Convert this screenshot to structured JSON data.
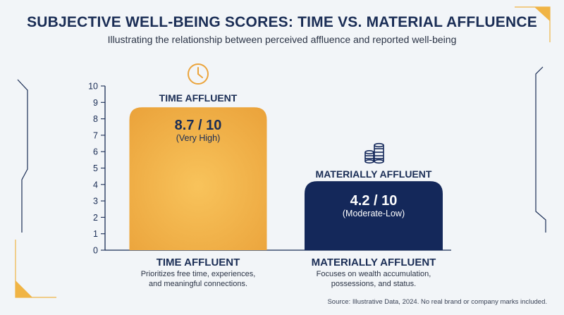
{
  "chart_data": {
    "type": "bar",
    "title": "SUBJECTIVE WELL-BEING SCORES: TIME VS. MATERIAL AFFLUENCE",
    "subtitle": "Illustrating the relationship between perceived affluence and reported well-being",
    "categories": [
      "TIME AFFLUENT",
      "MATERIALLY AFFLUENT"
    ],
    "values": [
      8.7,
      4.2
    ],
    "value_labels": [
      "8.7 / 10",
      "4.2 / 10"
    ],
    "qualifiers": [
      "(Very High)",
      "(Moderate-Low)"
    ],
    "bar_headers": [
      "TIME AFFLUENT",
      "MATERIALLY AFFLUENT"
    ],
    "descriptions": [
      [
        "Prioritizes free time, experiences,",
        "and meaningful connections."
      ],
      [
        "Focuses on wealth accumulation,",
        "possessions, and status."
      ]
    ],
    "icons": [
      "clock-icon",
      "coins-icon"
    ],
    "ylim": [
      0,
      10
    ],
    "yticks": [
      "0",
      "1",
      "2",
      "3",
      "4",
      "5",
      "6",
      "7",
      "8",
      "9",
      "10"
    ],
    "xlabel": "",
    "ylabel": "",
    "grid": false,
    "colors": {
      "time_bar": "#f0b445",
      "material_bar": "#14285a",
      "title": "#1a2d55",
      "accent": "#f0b445"
    },
    "source": "Source: Illustrative Data, 2024. No real brand or company marks included."
  }
}
